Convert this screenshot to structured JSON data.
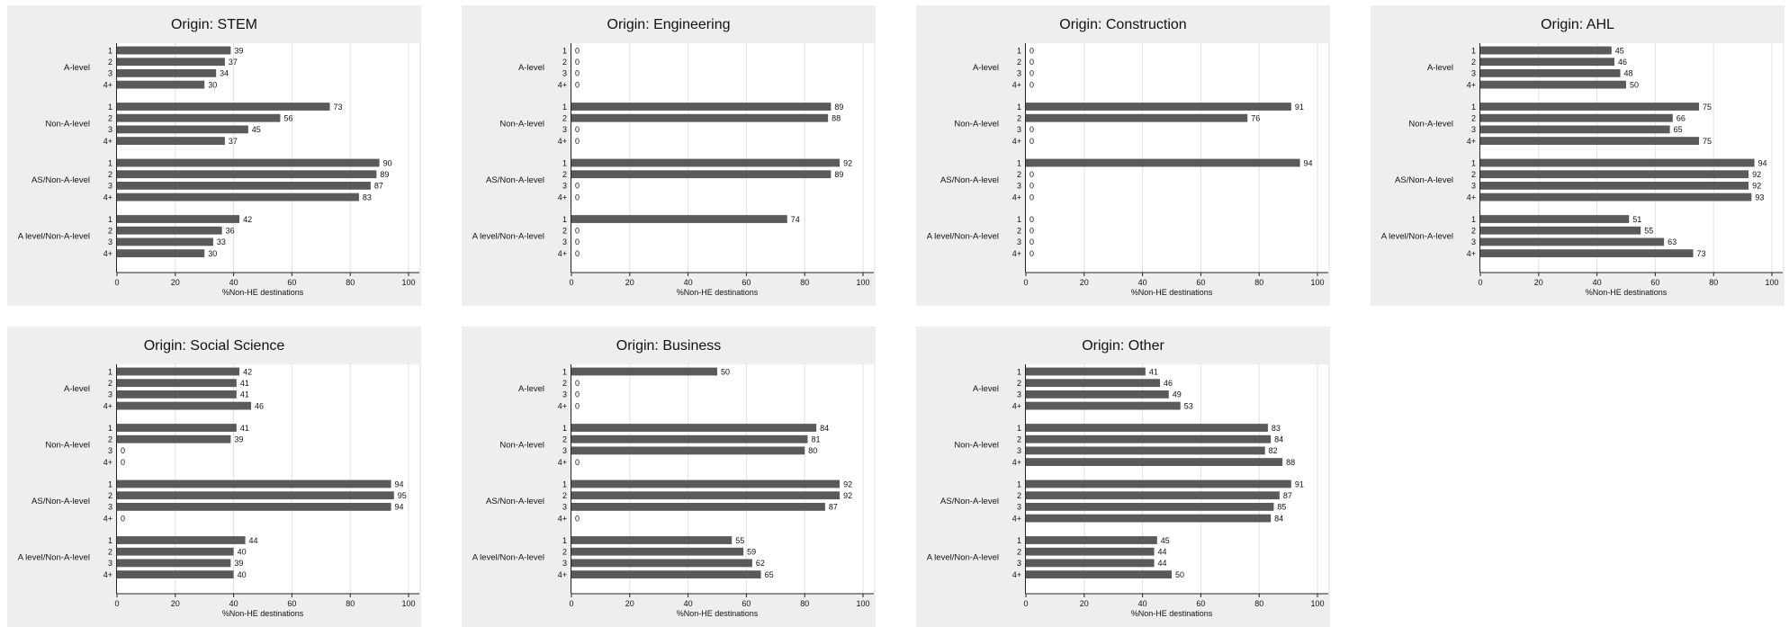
{
  "chart_data": [
    {
      "type": "bar",
      "title": "Origin: STEM",
      "xlabel": "%Non-HE destinations",
      "xlim": [
        0,
        100
      ],
      "xticks": [
        0,
        20,
        40,
        60,
        80,
        100
      ],
      "grid": true,
      "bar_color": "#5a5a5a",
      "groups": [
        {
          "label": "A-level",
          "categories": [
            "1",
            "2",
            "3",
            "4+"
          ],
          "values": [
            39,
            37,
            34,
            30
          ]
        },
        {
          "label": "Non-A-level",
          "categories": [
            "1",
            "2",
            "3",
            "4+"
          ],
          "values": [
            73,
            56,
            45,
            37
          ]
        },
        {
          "label": "AS/Non-A-level",
          "categories": [
            "1",
            "2",
            "3",
            "4+"
          ],
          "values": [
            90,
            89,
            87,
            83
          ]
        },
        {
          "label": "A level/Non-A-level",
          "categories": [
            "1",
            "2",
            "3",
            "4+"
          ],
          "values": [
            42,
            36,
            33,
            30
          ]
        }
      ]
    },
    {
      "type": "bar",
      "title": "Origin: Engineering",
      "xlabel": "%Non-HE destinations",
      "xlim": [
        0,
        100
      ],
      "xticks": [
        0,
        20,
        40,
        60,
        80,
        100
      ],
      "grid": true,
      "bar_color": "#5a5a5a",
      "groups": [
        {
          "label": "A-level",
          "categories": [
            "1",
            "2",
            "3",
            "4+"
          ],
          "values": [
            0,
            0,
            0,
            0
          ]
        },
        {
          "label": "Non-A-level",
          "categories": [
            "1",
            "2",
            "3",
            "4+"
          ],
          "values": [
            89,
            88,
            0,
            0
          ]
        },
        {
          "label": "AS/Non-A-level",
          "categories": [
            "1",
            "2",
            "3",
            "4+"
          ],
          "values": [
            92,
            89,
            0,
            0
          ]
        },
        {
          "label": "A level/Non-A-level",
          "categories": [
            "1",
            "2",
            "3",
            "4+"
          ],
          "values": [
            74,
            0,
            0,
            0
          ]
        }
      ]
    },
    {
      "type": "bar",
      "title": "Origin: Construction",
      "xlabel": "%Non-HE destinations",
      "xlim": [
        0,
        100
      ],
      "xticks": [
        0,
        20,
        40,
        60,
        80,
        100
      ],
      "grid": true,
      "bar_color": "#5a5a5a",
      "groups": [
        {
          "label": "A-level",
          "categories": [
            "1",
            "2",
            "3",
            "4+"
          ],
          "values": [
            0,
            0,
            0,
            0
          ]
        },
        {
          "label": "Non-A-level",
          "categories": [
            "1",
            "2",
            "3",
            "4+"
          ],
          "values": [
            91,
            76,
            0,
            0
          ]
        },
        {
          "label": "AS/Non-A-level",
          "categories": [
            "1",
            "2",
            "3",
            "4+"
          ],
          "values": [
            94,
            0,
            0,
            0
          ]
        },
        {
          "label": "A level/Non-A-level",
          "categories": [
            "1",
            "2",
            "3",
            "4+"
          ],
          "values": [
            0,
            0,
            0,
            0
          ]
        }
      ]
    },
    {
      "type": "bar",
      "title": "Origin: AHL",
      "xlabel": "%Non-HE destinations",
      "xlim": [
        0,
        100
      ],
      "xticks": [
        0,
        20,
        40,
        60,
        80,
        100
      ],
      "grid": true,
      "bar_color": "#5a5a5a",
      "groups": [
        {
          "label": "A-level",
          "categories": [
            "1",
            "2",
            "3",
            "4+"
          ],
          "values": [
            45,
            46,
            48,
            50
          ]
        },
        {
          "label": "Non-A-level",
          "categories": [
            "1",
            "2",
            "3",
            "4+"
          ],
          "values": [
            75,
            66,
            65,
            75
          ]
        },
        {
          "label": "AS/Non-A-level",
          "categories": [
            "1",
            "2",
            "3",
            "4+"
          ],
          "values": [
            94,
            92,
            92,
            93
          ]
        },
        {
          "label": "A level/Non-A-level",
          "categories": [
            "1",
            "2",
            "3",
            "4+"
          ],
          "values": [
            51,
            55,
            63,
            73
          ]
        }
      ]
    },
    {
      "type": "bar",
      "title": "Origin: Social Science",
      "xlabel": "%Non-HE destinations",
      "xlim": [
        0,
        100
      ],
      "xticks": [
        0,
        20,
        40,
        60,
        80,
        100
      ],
      "grid": true,
      "bar_color": "#5a5a5a",
      "groups": [
        {
          "label": "A-level",
          "categories": [
            "1",
            "2",
            "3",
            "4+"
          ],
          "values": [
            42,
            41,
            41,
            46
          ]
        },
        {
          "label": "Non-A-level",
          "categories": [
            "1",
            "2",
            "3",
            "4+"
          ],
          "values": [
            41,
            39,
            0,
            0
          ]
        },
        {
          "label": "AS/Non-A-level",
          "categories": [
            "1",
            "2",
            "3",
            "4+"
          ],
          "values": [
            94,
            95,
            94,
            0
          ]
        },
        {
          "label": "A level/Non-A-level",
          "categories": [
            "1",
            "2",
            "3",
            "4+"
          ],
          "values": [
            44,
            40,
            39,
            40
          ]
        }
      ]
    },
    {
      "type": "bar",
      "title": "Origin: Business",
      "xlabel": "%Non-HE destinations",
      "xlim": [
        0,
        100
      ],
      "xticks": [
        0,
        20,
        40,
        60,
        80,
        100
      ],
      "grid": true,
      "bar_color": "#5a5a5a",
      "groups": [
        {
          "label": "A-level",
          "categories": [
            "1",
            "2",
            "3",
            "4+"
          ],
          "values": [
            50,
            0,
            0,
            0
          ]
        },
        {
          "label": "Non-A-level",
          "categories": [
            "1",
            "2",
            "3",
            "4+"
          ],
          "values": [
            84,
            81,
            80,
            0
          ]
        },
        {
          "label": "AS/Non-A-level",
          "categories": [
            "1",
            "2",
            "3",
            "4+"
          ],
          "values": [
            92,
            92,
            87,
            0
          ]
        },
        {
          "label": "A level/Non-A-level",
          "categories": [
            "1",
            "2",
            "3",
            "4+"
          ],
          "values": [
            55,
            59,
            62,
            65
          ]
        }
      ]
    },
    {
      "type": "bar",
      "title": "Origin: Other",
      "xlabel": "%Non-HE destinations",
      "xlim": [
        0,
        100
      ],
      "xticks": [
        0,
        20,
        40,
        60,
        80,
        100
      ],
      "grid": true,
      "bar_color": "#5a5a5a",
      "groups": [
        {
          "label": "A-level",
          "categories": [
            "1",
            "2",
            "3",
            "4+"
          ],
          "values": [
            41,
            46,
            49,
            53
          ]
        },
        {
          "label": "Non-A-level",
          "categories": [
            "1",
            "2",
            "3",
            "4+"
          ],
          "values": [
            83,
            84,
            82,
            88
          ]
        },
        {
          "label": "AS/Non-A-level",
          "categories": [
            "1",
            "2",
            "3",
            "4+"
          ],
          "values": [
            91,
            87,
            85,
            84
          ]
        },
        {
          "label": "A level/Non-A-level",
          "categories": [
            "1",
            "2",
            "3",
            "4+"
          ],
          "values": [
            45,
            44,
            44,
            50
          ]
        }
      ]
    }
  ]
}
